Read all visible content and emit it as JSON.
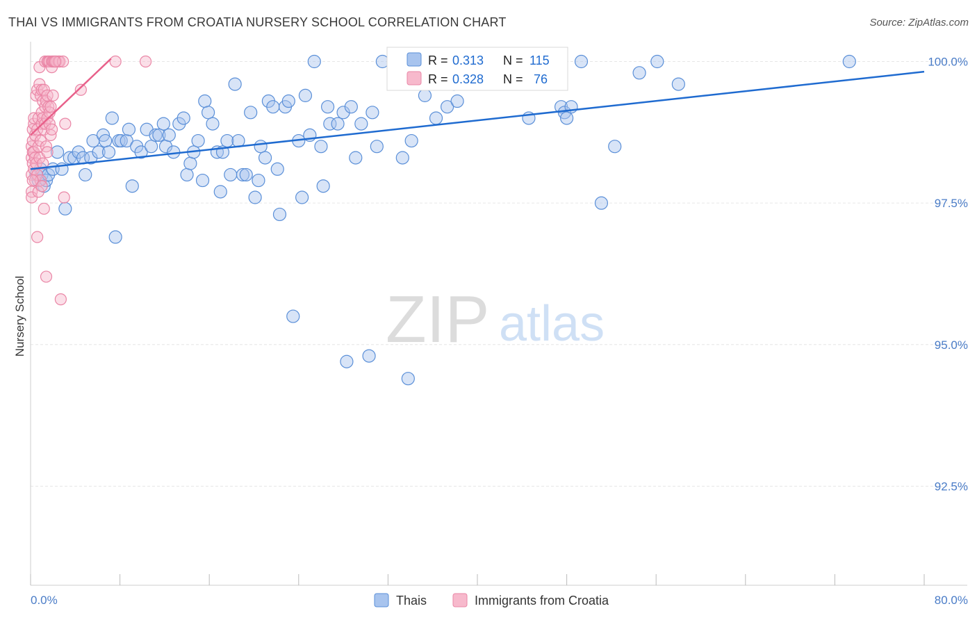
{
  "title": "THAI VS IMMIGRANTS FROM CROATIA NURSERY SCHOOL CORRELATION CHART",
  "source": "Source: ZipAtlas.com",
  "watermark": {
    "zip": "ZIP",
    "atlas": "atlas"
  },
  "colors": {
    "blue": "#1f6bd0",
    "blue_fill": "#a8c4ee",
    "blue_stroke": "#5a8fd8",
    "pink": "#e8608a",
    "pink_fill": "#f7b9cc",
    "pink_stroke": "#ea86a6",
    "tick_text": "#4a7cc7",
    "grid": "#e6e6e6"
  },
  "stats_box": {
    "rows": [
      {
        "r_label": "R =",
        "r_value": "0.313",
        "n_label": "N =",
        "n_value": "115"
      },
      {
        "r_label": "R =",
        "r_value": "0.328",
        "n_label": "N =",
        "n_value": "76"
      }
    ]
  },
  "chart_data": {
    "type": "scatter",
    "title": "THAI VS IMMIGRANTS FROM CROATIA NURSERY SCHOOL CORRELATION CHART",
    "xlabel": "",
    "ylabel": "Nursery School",
    "xlim": [
      0,
      80
    ],
    "ylim": [
      90.75,
      100.35
    ],
    "x_tick_labels": [
      "0.0%",
      "80.0%"
    ],
    "y_ticks": [
      92.5,
      95.0,
      97.5,
      100.0
    ],
    "y_tick_labels": [
      "92.5%",
      "95.0%",
      "97.5%",
      "100.0%"
    ],
    "grid": true,
    "legend_position": "bottom-center",
    "series": [
      {
        "name": "Thais",
        "r": 0.313,
        "n": 115,
        "trend": [
          [
            0.0,
            98.1
          ],
          [
            80.0,
            99.82
          ]
        ],
        "points": [
          [
            0.5,
            98.0
          ],
          [
            0.7,
            97.9
          ],
          [
            0.9,
            98.1
          ],
          [
            1.0,
            98.0
          ],
          [
            1.2,
            97.8
          ],
          [
            1.4,
            97.9
          ],
          [
            1.6,
            98.0
          ],
          [
            2.0,
            98.1
          ],
          [
            2.4,
            98.4
          ],
          [
            2.8,
            98.1
          ],
          [
            3.1,
            97.4
          ],
          [
            3.5,
            98.3
          ],
          [
            3.9,
            98.3
          ],
          [
            4.3,
            98.4
          ],
          [
            4.7,
            98.3
          ],
          [
            4.9,
            98.0
          ],
          [
            5.4,
            98.3
          ],
          [
            5.6,
            98.6
          ],
          [
            6.1,
            98.4
          ],
          [
            6.5,
            98.7
          ],
          [
            6.7,
            98.6
          ],
          [
            7.0,
            98.4
          ],
          [
            7.3,
            99.0
          ],
          [
            7.6,
            96.9
          ],
          [
            7.9,
            98.6
          ],
          [
            8.1,
            98.6
          ],
          [
            8.6,
            98.6
          ],
          [
            8.8,
            98.8
          ],
          [
            9.1,
            97.8
          ],
          [
            9.5,
            98.5
          ],
          [
            9.9,
            98.4
          ],
          [
            10.4,
            98.8
          ],
          [
            10.8,
            98.5
          ],
          [
            11.2,
            98.7
          ],
          [
            11.5,
            98.7
          ],
          [
            11.9,
            98.9
          ],
          [
            12.1,
            98.5
          ],
          [
            12.4,
            98.7
          ],
          [
            12.8,
            98.4
          ],
          [
            13.3,
            98.9
          ],
          [
            13.7,
            99.0
          ],
          [
            14.0,
            98.0
          ],
          [
            14.3,
            98.2
          ],
          [
            14.6,
            98.4
          ],
          [
            15.0,
            98.6
          ],
          [
            15.4,
            97.9
          ],
          [
            15.6,
            99.3
          ],
          [
            15.9,
            99.1
          ],
          [
            16.3,
            98.9
          ],
          [
            16.7,
            98.4
          ],
          [
            17.0,
            97.7
          ],
          [
            17.2,
            98.4
          ],
          [
            17.6,
            98.6
          ],
          [
            17.9,
            98.0
          ],
          [
            18.3,
            99.6
          ],
          [
            18.6,
            98.6
          ],
          [
            19.0,
            98.0
          ],
          [
            19.3,
            98.0
          ],
          [
            19.7,
            99.1
          ],
          [
            20.1,
            97.6
          ],
          [
            20.4,
            97.9
          ],
          [
            20.6,
            98.5
          ],
          [
            21.0,
            98.3
          ],
          [
            21.3,
            99.3
          ],
          [
            21.7,
            99.2
          ],
          [
            22.1,
            98.1
          ],
          [
            22.3,
            97.3
          ],
          [
            22.8,
            99.2
          ],
          [
            23.1,
            99.3
          ],
          [
            23.5,
            95.5
          ],
          [
            24.0,
            98.6
          ],
          [
            24.3,
            97.6
          ],
          [
            24.6,
            99.4
          ],
          [
            25.0,
            98.7
          ],
          [
            25.4,
            100.0
          ],
          [
            26.0,
            98.5
          ],
          [
            26.2,
            97.8
          ],
          [
            26.6,
            99.2
          ],
          [
            26.8,
            98.9
          ],
          [
            27.5,
            98.9
          ],
          [
            28.0,
            99.1
          ],
          [
            28.3,
            94.7
          ],
          [
            28.7,
            99.2
          ],
          [
            29.1,
            98.3
          ],
          [
            29.6,
            98.9
          ],
          [
            30.3,
            94.8
          ],
          [
            30.6,
            99.1
          ],
          [
            31.0,
            98.5
          ],
          [
            31.5,
            100.0
          ],
          [
            32.5,
            100.0
          ],
          [
            33.0,
            99.8
          ],
          [
            33.3,
            98.3
          ],
          [
            33.8,
            94.4
          ],
          [
            34.1,
            98.6
          ],
          [
            34.8,
            100.0
          ],
          [
            35.3,
            99.4
          ],
          [
            36.3,
            99.0
          ],
          [
            37.3,
            99.2
          ],
          [
            37.9,
            99.6
          ],
          [
            38.2,
            99.3
          ],
          [
            38.8,
            100.0
          ],
          [
            39.6,
            100.0
          ],
          [
            40.3,
            100.0
          ],
          [
            44.6,
            99.0
          ],
          [
            47.5,
            99.2
          ],
          [
            47.8,
            99.1
          ],
          [
            48.0,
            99.0
          ],
          [
            48.4,
            99.2
          ],
          [
            49.3,
            100.0
          ],
          [
            51.1,
            97.5
          ],
          [
            52.3,
            98.5
          ],
          [
            54.5,
            99.8
          ],
          [
            56.1,
            100.0
          ],
          [
            58.0,
            99.6
          ],
          [
            73.3,
            100.0
          ]
        ]
      },
      {
        "name": "Immigrants from Croatia",
        "r": 0.328,
        "n": 76,
        "trend": [
          [
            0.0,
            98.7
          ],
          [
            7.2,
            100.05
          ]
        ],
        "points": [
          [
            0.1,
            98.5
          ],
          [
            0.1,
            98.3
          ],
          [
            0.1,
            98.0
          ],
          [
            0.1,
            97.7
          ],
          [
            0.1,
            97.6
          ],
          [
            0.2,
            98.8
          ],
          [
            0.2,
            98.4
          ],
          [
            0.2,
            98.6
          ],
          [
            0.2,
            98.2
          ],
          [
            0.3,
            98.9
          ],
          [
            0.3,
            98.4
          ],
          [
            0.3,
            99.0
          ],
          [
            0.3,
            98.1
          ],
          [
            0.4,
            98.3
          ],
          [
            0.4,
            97.9
          ],
          [
            0.4,
            98.7
          ],
          [
            0.5,
            99.4
          ],
          [
            0.5,
            98.2
          ],
          [
            0.6,
            98.0
          ],
          [
            0.6,
            98.8
          ],
          [
            0.6,
            99.5
          ],
          [
            0.7,
            99.0
          ],
          [
            0.7,
            98.5
          ],
          [
            0.7,
            97.7
          ],
          [
            0.8,
            99.6
          ],
          [
            0.8,
            98.3
          ],
          [
            0.8,
            99.9
          ],
          [
            0.9,
            99.4
          ],
          [
            0.9,
            98.6
          ],
          [
            0.9,
            97.9
          ],
          [
            1.0,
            99.5
          ],
          [
            1.0,
            98.9
          ],
          [
            1.0,
            99.1
          ],
          [
            1.0,
            97.8
          ],
          [
            1.1,
            99.3
          ],
          [
            1.1,
            99.0
          ],
          [
            1.1,
            98.2
          ],
          [
            1.2,
            99.5
          ],
          [
            1.2,
            98.8
          ],
          [
            1.2,
            97.4
          ],
          [
            1.3,
            99.2
          ],
          [
            1.3,
            98.9
          ],
          [
            1.3,
            100.0
          ],
          [
            1.4,
            99.3
          ],
          [
            1.4,
            98.5
          ],
          [
            1.4,
            96.2
          ],
          [
            1.5,
            99.0
          ],
          [
            1.5,
            99.4
          ],
          [
            1.5,
            98.4
          ],
          [
            1.5,
            100.0
          ],
          [
            1.6,
            100.0
          ],
          [
            1.6,
            99.2
          ],
          [
            1.7,
            99.1
          ],
          [
            1.7,
            98.9
          ],
          [
            1.7,
            100.0
          ],
          [
            1.8,
            99.2
          ],
          [
            1.8,
            98.7
          ],
          [
            1.9,
            100.0
          ],
          [
            1.9,
            99.9
          ],
          [
            2.0,
            99.4
          ],
          [
            2.0,
            100.0
          ],
          [
            2.1,
            100.0
          ],
          [
            2.3,
            100.0
          ],
          [
            2.5,
            100.0
          ],
          [
            2.6,
            100.0
          ],
          [
            2.7,
            95.8
          ],
          [
            2.9,
            100.0
          ],
          [
            3.0,
            97.6
          ],
          [
            3.1,
            98.9
          ],
          [
            4.5,
            99.5
          ],
          [
            7.6,
            100.0
          ],
          [
            10.3,
            100.0
          ],
          [
            0.6,
            96.9
          ],
          [
            0.2,
            97.9
          ],
          [
            2.2,
            100.0
          ],
          [
            1.9,
            98.8
          ]
        ]
      }
    ]
  }
}
